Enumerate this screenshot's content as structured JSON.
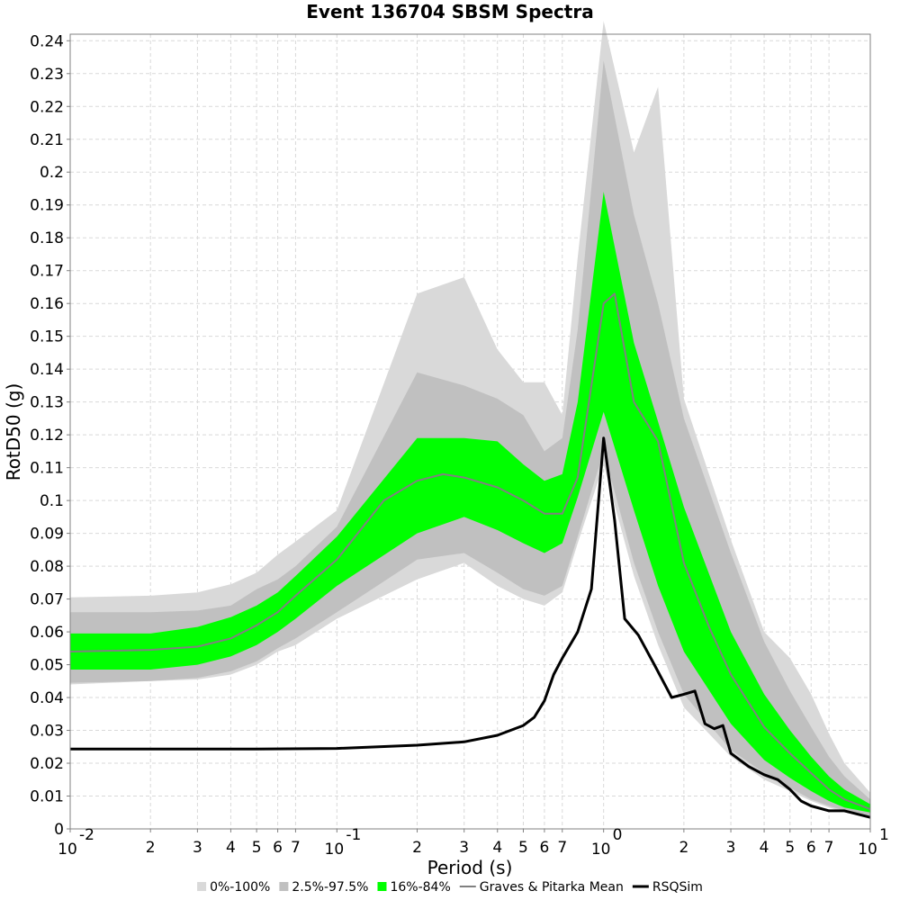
{
  "chart_data": {
    "type": "area",
    "title": "Event 136704 SBSM Spectra",
    "xlabel": "Period (s)",
    "ylabel": "RotD50 (g)",
    "xscale": "log",
    "xlim": [
      0.01,
      10
    ],
    "ylim": [
      0,
      0.242
    ],
    "grid": true,
    "legend_position": "bottom",
    "x_ticks": [
      {
        "value": 0.01,
        "base": "10",
        "exp": "-2"
      },
      {
        "value": 0.02,
        "label": "2"
      },
      {
        "value": 0.03,
        "label": "3"
      },
      {
        "value": 0.04,
        "label": "4"
      },
      {
        "value": 0.05,
        "label": "5"
      },
      {
        "value": 0.06,
        "label": "6"
      },
      {
        "value": 0.07,
        "label": "7"
      },
      {
        "value": 0.1,
        "base": "10",
        "exp": "-1"
      },
      {
        "value": 0.2,
        "label": "2"
      },
      {
        "value": 0.3,
        "label": "3"
      },
      {
        "value": 0.4,
        "label": "4"
      },
      {
        "value": 0.5,
        "label": "5"
      },
      {
        "value": 0.6,
        "label": "6"
      },
      {
        "value": 0.7,
        "label": "7"
      },
      {
        "value": 1,
        "base": "10",
        "exp": "0"
      },
      {
        "value": 2,
        "label": "2"
      },
      {
        "value": 3,
        "label": "3"
      },
      {
        "value": 4,
        "label": "4"
      },
      {
        "value": 5,
        "label": "5"
      },
      {
        "value": 6,
        "label": "6"
      },
      {
        "value": 7,
        "label": "7"
      },
      {
        "value": 10,
        "base": "10",
        "exp": "1"
      }
    ],
    "y_ticks": [
      "0",
      "0.01",
      "0.02",
      "0.03",
      "0.04",
      "0.05",
      "0.06",
      "0.07",
      "0.08",
      "0.09",
      "0.1",
      "0.11",
      "0.12",
      "0.13",
      "0.14",
      "0.15",
      "0.16",
      "0.17",
      "0.18",
      "0.19",
      "0.2",
      "0.21",
      "0.22",
      "0.23",
      "0.24"
    ],
    "bands": [
      {
        "name": "0%-100%",
        "color": "#d9d9d9",
        "x": [
          0.01,
          0.02,
          0.03,
          0.04,
          0.05,
          0.06,
          0.07,
          0.1,
          0.2,
          0.3,
          0.4,
          0.5,
          0.6,
          0.7,
          0.8,
          1,
          1.3,
          1.6,
          2,
          3,
          4,
          5,
          6,
          7,
          8,
          10
        ],
        "upper": [
          0.0705,
          0.071,
          0.072,
          0.0745,
          0.078,
          0.0835,
          0.0875,
          0.097,
          0.163,
          0.168,
          0.146,
          0.136,
          0.136,
          0.126,
          0.174,
          0.246,
          0.206,
          0.226,
          0.131,
          0.088,
          0.06,
          0.052,
          0.041,
          0.029,
          0.02,
          0.011
        ],
        "lower": [
          0.044,
          0.045,
          0.0455,
          0.047,
          0.05,
          0.054,
          0.056,
          0.064,
          0.076,
          0.081,
          0.074,
          0.07,
          0.068,
          0.072,
          0.087,
          0.111,
          0.077,
          0.056,
          0.037,
          0.022,
          0.015,
          0.0115,
          0.0085,
          0.0065,
          0.005,
          0.004
        ]
      },
      {
        "name": "2.5%-97.5%",
        "color": "#c0c0c0",
        "x": [
          0.01,
          0.02,
          0.03,
          0.04,
          0.05,
          0.06,
          0.07,
          0.1,
          0.2,
          0.3,
          0.4,
          0.5,
          0.6,
          0.7,
          0.8,
          1,
          1.3,
          1.6,
          2,
          3,
          4,
          5,
          6,
          7,
          8,
          10
        ],
        "upper": [
          0.066,
          0.066,
          0.0665,
          0.068,
          0.073,
          0.076,
          0.08,
          0.092,
          0.139,
          0.135,
          0.131,
          0.126,
          0.115,
          0.119,
          0.152,
          0.234,
          0.187,
          0.16,
          0.125,
          0.084,
          0.057,
          0.042,
          0.031,
          0.022,
          0.016,
          0.009
        ],
        "lower": [
          0.0445,
          0.045,
          0.046,
          0.048,
          0.051,
          0.055,
          0.058,
          0.066,
          0.082,
          0.084,
          0.078,
          0.073,
          0.071,
          0.074,
          0.089,
          0.115,
          0.081,
          0.06,
          0.041,
          0.024,
          0.017,
          0.0125,
          0.009,
          0.007,
          0.0055,
          0.004
        ]
      },
      {
        "name": "16%-84%",
        "color": "#00ff00",
        "x": [
          0.01,
          0.02,
          0.03,
          0.04,
          0.05,
          0.06,
          0.07,
          0.1,
          0.2,
          0.3,
          0.4,
          0.5,
          0.6,
          0.7,
          0.8,
          1,
          1.3,
          1.6,
          2,
          3,
          4,
          5,
          6,
          7,
          8,
          10
        ],
        "upper": [
          0.0595,
          0.0595,
          0.0615,
          0.0645,
          0.068,
          0.072,
          0.077,
          0.089,
          0.119,
          0.119,
          0.118,
          0.111,
          0.106,
          0.108,
          0.13,
          0.194,
          0.148,
          0.124,
          0.098,
          0.06,
          0.041,
          0.03,
          0.022,
          0.016,
          0.012,
          0.0075
        ],
        "lower": [
          0.0485,
          0.0485,
          0.05,
          0.0525,
          0.056,
          0.06,
          0.064,
          0.074,
          0.09,
          0.095,
          0.091,
          0.087,
          0.084,
          0.087,
          0.101,
          0.127,
          0.097,
          0.074,
          0.054,
          0.032,
          0.021,
          0.0155,
          0.0115,
          0.0085,
          0.0065,
          0.005
        ]
      }
    ],
    "series": [
      {
        "name": "Graves & Pitarka Mean",
        "color": "#808080",
        "x": [
          0.01,
          0.02,
          0.03,
          0.04,
          0.05,
          0.06,
          0.07,
          0.1,
          0.15,
          0.2,
          0.25,
          0.3,
          0.4,
          0.5,
          0.6,
          0.7,
          0.8,
          1,
          1.1,
          1.3,
          1.6,
          2,
          2.5,
          3,
          4,
          5,
          6,
          7,
          8,
          10
        ],
        "y": [
          0.054,
          0.0545,
          0.0555,
          0.058,
          0.062,
          0.066,
          0.071,
          0.082,
          0.1,
          0.106,
          0.108,
          0.107,
          0.104,
          0.1,
          0.096,
          0.096,
          0.107,
          0.16,
          0.163,
          0.13,
          0.118,
          0.081,
          0.061,
          0.047,
          0.031,
          0.023,
          0.017,
          0.012,
          0.009,
          0.006
        ]
      },
      {
        "name": "RSQSim",
        "color": "#000000",
        "x": [
          0.01,
          0.02,
          0.05,
          0.1,
          0.2,
          0.3,
          0.4,
          0.5,
          0.55,
          0.6,
          0.65,
          0.7,
          0.8,
          0.9,
          1.0,
          1.1,
          1.2,
          1.35,
          1.55,
          1.8,
          2.0,
          2.2,
          2.4,
          2.6,
          2.8,
          3.0,
          3.5,
          4.0,
          4.5,
          5.0,
          5.5,
          6.0,
          7.0,
          8.0,
          10.0
        ],
        "y": [
          0.0243,
          0.0243,
          0.0243,
          0.0245,
          0.0255,
          0.0265,
          0.0285,
          0.0315,
          0.034,
          0.039,
          0.047,
          0.052,
          0.06,
          0.073,
          0.119,
          0.094,
          0.064,
          0.059,
          0.05,
          0.04,
          0.041,
          0.042,
          0.032,
          0.0305,
          0.0315,
          0.023,
          0.019,
          0.0165,
          0.015,
          0.012,
          0.0085,
          0.007,
          0.0055,
          0.0055,
          0.0035
        ]
      }
    ],
    "legend": [
      {
        "label": "0%-100%",
        "kind": "box",
        "color": "#d9d9d9"
      },
      {
        "label": "2.5%-97.5%",
        "kind": "box",
        "color": "#c0c0c0"
      },
      {
        "label": "16%-84%",
        "kind": "box",
        "color": "#00ff00"
      },
      {
        "label": "Graves & Pitarka Mean",
        "kind": "line",
        "color": "#808080"
      },
      {
        "label": "RSQSim",
        "kind": "line",
        "color": "#000000"
      }
    ]
  }
}
